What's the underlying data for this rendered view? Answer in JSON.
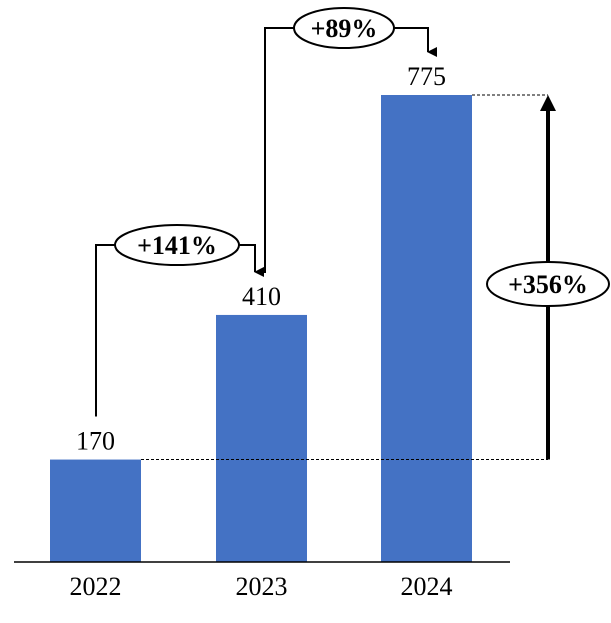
{
  "chart_data": {
    "type": "bar",
    "categories": [
      "2022",
      "2023",
      "2024"
    ],
    "values": [
      170,
      410,
      775
    ],
    "data_labels": [
      "170",
      "410",
      "775"
    ],
    "ylim": [
      0,
      775
    ],
    "grid": false,
    "bar_color": "#4472C4",
    "annotations": {
      "step_changes": [
        {
          "from": "2022",
          "to": "2023",
          "label": "+141%"
        },
        {
          "from": "2023",
          "to": "2024",
          "label": "+89%"
        }
      ],
      "total_change": {
        "from": "2022",
        "to": "2024",
        "label": "+356%"
      }
    }
  }
}
